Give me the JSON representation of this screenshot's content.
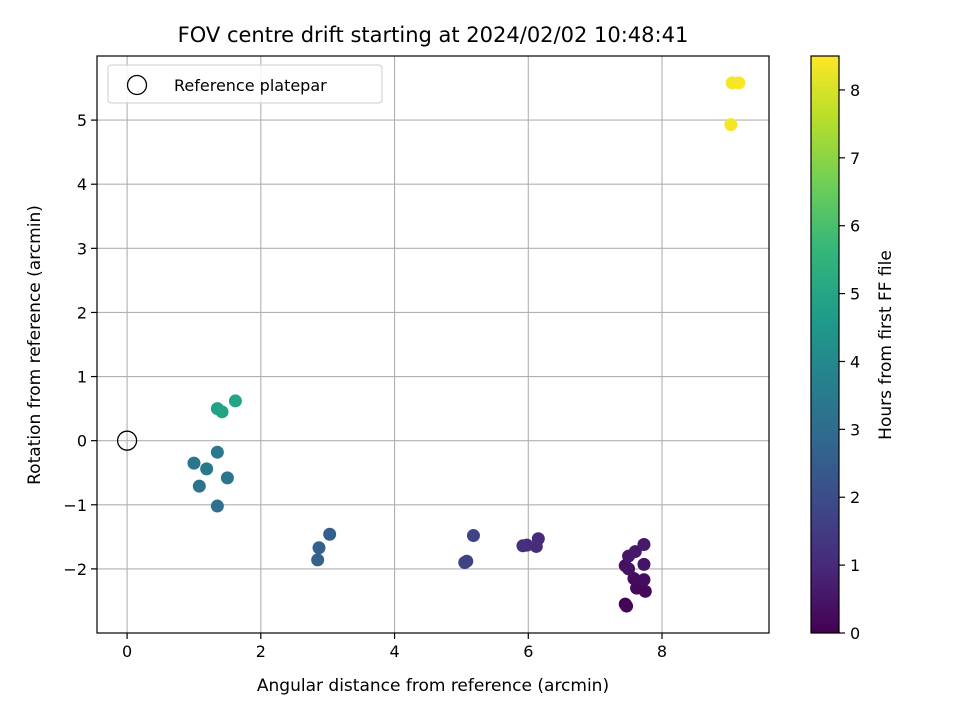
{
  "chart_data": {
    "type": "scatter",
    "title": "FOV centre drift starting at 2024/02/02 10:48:41",
    "xlabel": "Angular distance from reference (arcmin)",
    "ylabel": "Rotation from reference (arcmin)",
    "xlim": [
      -0.45,
      9.6
    ],
    "ylim": [
      -3.0,
      6.0
    ],
    "xticks": [
      0,
      2,
      4,
      6,
      8
    ],
    "yticks": [
      -2,
      -1,
      0,
      1,
      2,
      3,
      4,
      5
    ],
    "grid": true,
    "legend": {
      "position": "top-left",
      "entries": [
        "Reference platepar"
      ]
    },
    "reference": {
      "x": 0,
      "y": 0
    },
    "colorbar": {
      "label": "Hours from first FF file",
      "range": [
        0,
        8.5
      ],
      "ticks": [
        0,
        1,
        2,
        3,
        4,
        5,
        6,
        7,
        8
      ],
      "colormap": "viridis",
      "stops": [
        "#440154",
        "#482878",
        "#3e4989",
        "#31688e",
        "#26828e",
        "#1f9e89",
        "#35b779",
        "#6ece58",
        "#b5de2b",
        "#fde725"
      ]
    },
    "points": [
      {
        "x": 7.45,
        "y": -2.55,
        "h": 0.05
      },
      {
        "x": 7.47,
        "y": -2.58,
        "h": 0.1
      },
      {
        "x": 7.62,
        "y": -2.3,
        "h": 0.15
      },
      {
        "x": 7.75,
        "y": -2.35,
        "h": 0.2
      },
      {
        "x": 7.58,
        "y": -2.15,
        "h": 0.25
      },
      {
        "x": 7.73,
        "y": -2.17,
        "h": 0.3
      },
      {
        "x": 7.45,
        "y": -1.95,
        "h": 0.35
      },
      {
        "x": 7.5,
        "y": -2.0,
        "h": 0.4
      },
      {
        "x": 7.73,
        "y": -1.93,
        "h": 0.45
      },
      {
        "x": 7.5,
        "y": -1.8,
        "h": 0.5
      },
      {
        "x": 7.6,
        "y": -1.73,
        "h": 0.55
      },
      {
        "x": 7.73,
        "y": -1.62,
        "h": 0.6
      },
      {
        "x": 6.15,
        "y": -1.53,
        "h": 1.0
      },
      {
        "x": 6.12,
        "y": -1.65,
        "h": 1.05
      },
      {
        "x": 5.98,
        "y": -1.63,
        "h": 1.1
      },
      {
        "x": 5.92,
        "y": -1.64,
        "h": 1.15
      },
      {
        "x": 5.05,
        "y": -1.9,
        "h": 1.65
      },
      {
        "x": 5.08,
        "y": -1.88,
        "h": 1.7
      },
      {
        "x": 5.18,
        "y": -1.48,
        "h": 1.75
      },
      {
        "x": 3.03,
        "y": -1.46,
        "h": 2.55
      },
      {
        "x": 2.87,
        "y": -1.67,
        "h": 2.6
      },
      {
        "x": 2.85,
        "y": -1.86,
        "h": 2.65
      },
      {
        "x": 1.35,
        "y": -1.02,
        "h": 3.15
      },
      {
        "x": 1.08,
        "y": -0.71,
        "h": 3.25
      },
      {
        "x": 1.5,
        "y": -0.58,
        "h": 3.3
      },
      {
        "x": 1.0,
        "y": -0.35,
        "h": 3.35
      },
      {
        "x": 1.19,
        "y": -0.44,
        "h": 3.4
      },
      {
        "x": 1.35,
        "y": -0.18,
        "h": 3.45
      },
      {
        "x": 1.35,
        "y": 0.5,
        "h": 4.85
      },
      {
        "x": 1.42,
        "y": 0.45,
        "h": 4.9
      },
      {
        "x": 1.62,
        "y": 0.62,
        "h": 4.95
      },
      {
        "x": 9.03,
        "y": 4.93,
        "h": 8.35
      },
      {
        "x": 9.05,
        "y": 5.58,
        "h": 8.4
      },
      {
        "x": 9.15,
        "y": 5.58,
        "h": 8.45
      }
    ]
  }
}
